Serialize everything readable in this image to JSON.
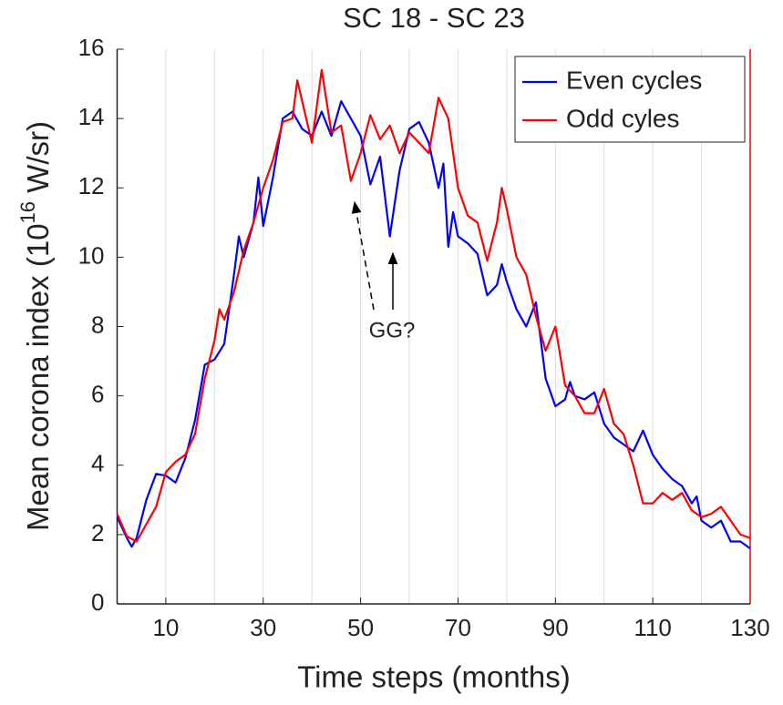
{
  "chart_data": {
    "type": "line",
    "title": "SC 18 - SC 23",
    "xlabel": "Time steps (months)",
    "ylabel": {
      "base": "Mean corona index (10",
      "sup": "16",
      "unit": " W/sr)"
    },
    "annotation": "GG?",
    "xlim": [
      0,
      130
    ],
    "ylim": [
      0,
      16
    ],
    "xticks": [
      10,
      30,
      50,
      70,
      90,
      110,
      130
    ],
    "xgrid": [
      10,
      20,
      30,
      40,
      50,
      60,
      70,
      80,
      90,
      100,
      110,
      120,
      130
    ],
    "yticks": [
      0,
      2,
      4,
      6,
      8,
      10,
      12,
      14,
      16
    ],
    "legend": "northeast",
    "series": [
      {
        "name": "Even cycles",
        "color": "#0000ff",
        "x": [
          0,
          2,
          3,
          4,
          6,
          8,
          10,
          12,
          14,
          16,
          18,
          20,
          22,
          24,
          25,
          26,
          28,
          29,
          30,
          32,
          34,
          36,
          38,
          40,
          42,
          44,
          46,
          48,
          50,
          52,
          54,
          56,
          58,
          60,
          62,
          64,
          66,
          67,
          68,
          69,
          70,
          72,
          74,
          76,
          78,
          79,
          80,
          82,
          84,
          86,
          88,
          90,
          92,
          93,
          94,
          96,
          98,
          100,
          102,
          104,
          106,
          108,
          110,
          112,
          114,
          116,
          118,
          119,
          120,
          122,
          124,
          126,
          128,
          130
        ],
        "values": [
          2.5,
          1.9,
          1.65,
          1.9,
          3.0,
          3.75,
          3.7,
          3.5,
          4.2,
          5.3,
          6.9,
          7.05,
          7.5,
          9.5,
          10.6,
          10.0,
          11.0,
          12.3,
          10.9,
          12.3,
          14.0,
          14.2,
          13.7,
          13.5,
          14.2,
          13.5,
          14.5,
          14.0,
          13.5,
          12.1,
          12.9,
          10.6,
          12.5,
          13.7,
          13.9,
          13.3,
          12.0,
          12.7,
          10.3,
          11.3,
          10.6,
          10.4,
          10.1,
          8.9,
          9.2,
          9.8,
          9.3,
          8.5,
          8.0,
          8.7,
          6.5,
          5.7,
          5.9,
          6.4,
          6.0,
          5.9,
          6.1,
          5.2,
          4.8,
          4.6,
          4.4,
          5.0,
          4.3,
          3.9,
          3.6,
          3.4,
          2.9,
          3.1,
          2.4,
          2.2,
          2.4,
          1.8,
          1.8,
          1.6
        ]
      },
      {
        "name": "Odd cyles",
        "color": "#ff0000",
        "x": [
          0,
          2,
          4,
          6,
          8,
          10,
          12,
          14,
          16,
          18,
          20,
          21,
          22,
          24,
          26,
          28,
          30,
          32,
          34,
          36,
          37,
          38,
          40,
          42,
          44,
          46,
          48,
          50,
          52,
          54,
          56,
          58,
          60,
          62,
          64,
          66,
          68,
          70,
          72,
          74,
          76,
          78,
          79,
          80,
          82,
          84,
          86,
          88,
          90,
          92,
          94,
          96,
          98,
          100,
          102,
          104,
          106,
          108,
          110,
          112,
          114,
          116,
          118,
          120,
          122,
          124,
          126,
          128,
          130
        ],
        "values": [
          2.6,
          1.95,
          1.8,
          2.3,
          2.8,
          3.8,
          4.1,
          4.3,
          4.9,
          6.5,
          7.6,
          8.5,
          8.2,
          9.0,
          10.2,
          11.0,
          12.0,
          12.8,
          13.9,
          14.0,
          15.1,
          14.5,
          13.3,
          15.4,
          13.6,
          13.8,
          12.2,
          13.0,
          14.1,
          13.4,
          13.8,
          13.0,
          13.6,
          13.3,
          13.0,
          14.6,
          14.0,
          12.0,
          11.2,
          11.0,
          9.9,
          11.0,
          12.0,
          11.4,
          10.0,
          9.5,
          8.3,
          7.3,
          8.0,
          6.3,
          6.0,
          5.5,
          5.5,
          6.2,
          5.2,
          4.9,
          4.0,
          2.9,
          2.9,
          3.2,
          3.0,
          3.2,
          2.7,
          2.5,
          2.6,
          2.8,
          2.4,
          2.0,
          1.9
        ]
      }
    ]
  }
}
